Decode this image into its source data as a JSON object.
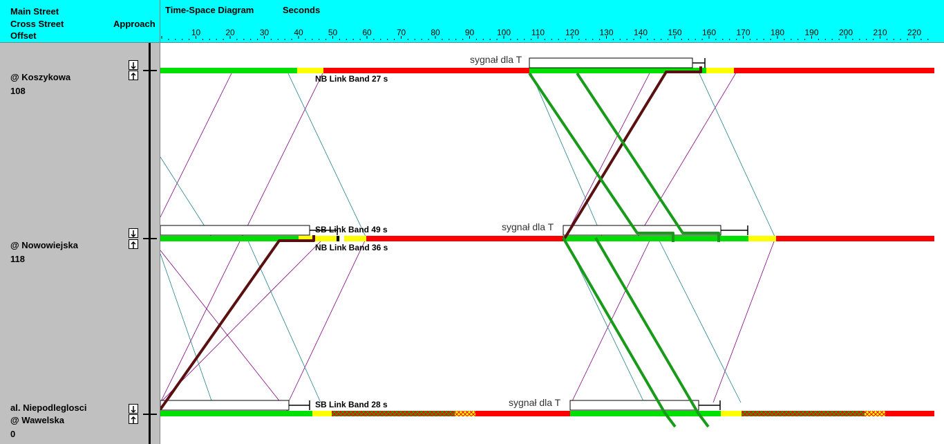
{
  "header": {
    "main_street": "Main Street",
    "cross_street": "Cross Street",
    "offset": "Offset",
    "approach": "Approach",
    "title": "Time-Space Diagram",
    "seconds": "Seconds",
    "ticks": [
      "10",
      "20",
      "30",
      "40",
      "50",
      "60",
      "70",
      "80",
      "90",
      "100",
      "110",
      "120",
      "130",
      "140",
      "150",
      "160",
      "170",
      "180",
      "190",
      "200",
      "210",
      "220"
    ]
  },
  "intersections": [
    {
      "name": "@ Koszykowa",
      "offset": "108"
    },
    {
      "name": "@ Nowowiejska",
      "offset": "118"
    },
    {
      "name_line1": "al. Niepodleglosci",
      "name_line2": "@ Wawelska",
      "offset": "0"
    }
  ],
  "labels": {
    "koszykowa_signal": "sygnał dla T",
    "koszykowa_nb_band": "NB Link Band 27 s",
    "nowowiejska_sb_band": "SB Link Band 49 s",
    "nowowiejska_nb_band": "NB Link Band 36 s",
    "nowowiejska_signal": "sygnał dla T",
    "wawelska_sb_band": "SB Link Band 28 s",
    "wawelska_signal": "sygnał dla T"
  },
  "colors": {
    "header_bg": "#00ffff",
    "panel_bg": "#c0c0c0",
    "green_phase": "#00e000",
    "yellow_phase": "#ffff00",
    "red_phase": "#ff0000",
    "band_green": "#1a9a1a",
    "band_darkred": "#5a1010",
    "nb_lines": "#800080",
    "sb_lines": "#20808a"
  }
}
